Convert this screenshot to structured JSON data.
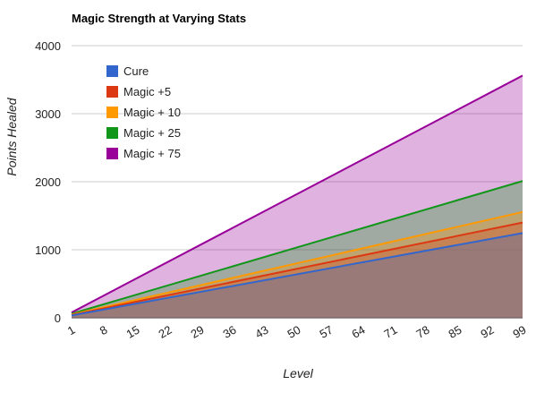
{
  "chart_data": {
    "type": "area",
    "title": "Magic Strength at Varying Stats",
    "xlabel": "Level",
    "ylabel": "Points Healed",
    "x_ticks": [
      "1",
      "8",
      "15",
      "22",
      "29",
      "36",
      "43",
      "50",
      "57",
      "64",
      "71",
      "78",
      "85",
      "92",
      "99"
    ],
    "x_range": [
      1,
      99
    ],
    "ylim": [
      0,
      4000
    ],
    "y_ticks": [
      "0",
      "1000",
      "2000",
      "3000",
      "4000"
    ],
    "grid": true,
    "legend_position": "top-left",
    "series": [
      {
        "name": "Magic + 75",
        "color": "#990099",
        "values_at_x_range": [
          78,
          3560
        ]
      },
      {
        "name": "Magic + 25",
        "color": "#109618",
        "values_at_x_range": [
          60,
          2010
        ]
      },
      {
        "name": "Magic + 10",
        "color": "#ff9900",
        "values_at_x_range": [
          48,
          1555
        ]
      },
      {
        "name": "Magic +5",
        "color": "#dc3912",
        "values_at_x_range": [
          42,
          1400
        ]
      },
      {
        "name": "Cure",
        "color": "#3366cc",
        "values_at_x_range": [
          35,
          1245
        ]
      }
    ],
    "legend": [
      "Cure",
      "Magic +5",
      "Magic + 10",
      "Magic + 25",
      "Magic + 75"
    ],
    "legend_colors": [
      "#3366cc",
      "#dc3912",
      "#ff9900",
      "#109618",
      "#990099"
    ]
  }
}
